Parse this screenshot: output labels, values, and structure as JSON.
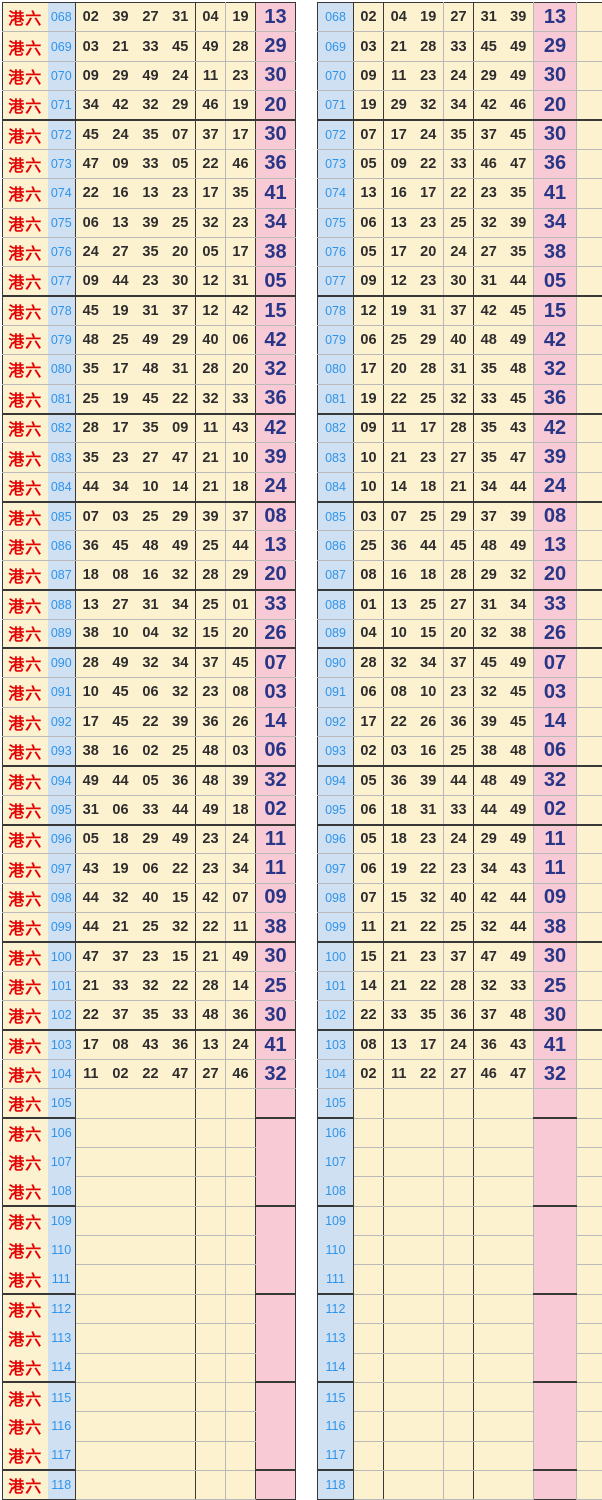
{
  "series_label": "港六",
  "colors": {
    "cell_bg": "#fdf2d0",
    "issue_col_bg": "#cfe0f3",
    "special_col_bg": "#f7cad5",
    "series_label_color": "#e30505",
    "issue_text_color": "#2e94ea",
    "number_text_color": "#2e2c2c",
    "special_text_color": "#293586",
    "grid_light": "#b9b9b9",
    "grid_dark": "#383838"
  },
  "group_dark_line_after": [
    "071",
    "077",
    "081",
    "084",
    "087",
    "089",
    "093",
    "095",
    "099",
    "102",
    "105",
    "108",
    "111",
    "114",
    "117"
  ],
  "left_table": {
    "rows": [
      {
        "issue": "068",
        "numbers": [
          "02",
          "39",
          "27",
          "31",
          "04",
          "19"
        ],
        "special": "13"
      },
      {
        "issue": "069",
        "numbers": [
          "03",
          "21",
          "33",
          "45",
          "49",
          "28"
        ],
        "special": "29"
      },
      {
        "issue": "070",
        "numbers": [
          "09",
          "29",
          "49",
          "24",
          "11",
          "23"
        ],
        "special": "30"
      },
      {
        "issue": "071",
        "numbers": [
          "34",
          "42",
          "32",
          "29",
          "46",
          "19"
        ],
        "special": "20"
      },
      {
        "issue": "072",
        "numbers": [
          "45",
          "24",
          "35",
          "07",
          "37",
          "17"
        ],
        "special": "30"
      },
      {
        "issue": "073",
        "numbers": [
          "47",
          "09",
          "33",
          "05",
          "22",
          "46"
        ],
        "special": "36"
      },
      {
        "issue": "074",
        "numbers": [
          "22",
          "16",
          "13",
          "23",
          "17",
          "35"
        ],
        "special": "41"
      },
      {
        "issue": "075",
        "numbers": [
          "06",
          "13",
          "39",
          "25",
          "32",
          "23"
        ],
        "special": "34"
      },
      {
        "issue": "076",
        "numbers": [
          "24",
          "27",
          "35",
          "20",
          "05",
          "17"
        ],
        "special": "38"
      },
      {
        "issue": "077",
        "numbers": [
          "09",
          "44",
          "23",
          "30",
          "12",
          "31"
        ],
        "special": "05"
      },
      {
        "issue": "078",
        "numbers": [
          "45",
          "19",
          "31",
          "37",
          "12",
          "42"
        ],
        "special": "15"
      },
      {
        "issue": "079",
        "numbers": [
          "48",
          "25",
          "49",
          "29",
          "40",
          "06"
        ],
        "special": "42"
      },
      {
        "issue": "080",
        "numbers": [
          "35",
          "17",
          "48",
          "31",
          "28",
          "20"
        ],
        "special": "32"
      },
      {
        "issue": "081",
        "numbers": [
          "25",
          "19",
          "45",
          "22",
          "32",
          "33"
        ],
        "special": "36"
      },
      {
        "issue": "082",
        "numbers": [
          "28",
          "17",
          "35",
          "09",
          "11",
          "43"
        ],
        "special": "42"
      },
      {
        "issue": "083",
        "numbers": [
          "35",
          "23",
          "27",
          "47",
          "21",
          "10"
        ],
        "special": "39"
      },
      {
        "issue": "084",
        "numbers": [
          "44",
          "34",
          "10",
          "14",
          "21",
          "18"
        ],
        "special": "24"
      },
      {
        "issue": "085",
        "numbers": [
          "07",
          "03",
          "25",
          "29",
          "39",
          "37"
        ],
        "special": "08"
      },
      {
        "issue": "086",
        "numbers": [
          "36",
          "45",
          "48",
          "49",
          "25",
          "44"
        ],
        "special": "13"
      },
      {
        "issue": "087",
        "numbers": [
          "18",
          "08",
          "16",
          "32",
          "28",
          "29"
        ],
        "special": "20"
      },
      {
        "issue": "088",
        "numbers": [
          "13",
          "27",
          "31",
          "34",
          "25",
          "01"
        ],
        "special": "33"
      },
      {
        "issue": "089",
        "numbers": [
          "38",
          "10",
          "04",
          "32",
          "15",
          "20"
        ],
        "special": "26"
      },
      {
        "issue": "090",
        "numbers": [
          "28",
          "49",
          "32",
          "34",
          "37",
          "45"
        ],
        "special": "07"
      },
      {
        "issue": "091",
        "numbers": [
          "10",
          "45",
          "06",
          "32",
          "23",
          "08"
        ],
        "special": "03"
      },
      {
        "issue": "092",
        "numbers": [
          "17",
          "45",
          "22",
          "39",
          "36",
          "26"
        ],
        "special": "14"
      },
      {
        "issue": "093",
        "numbers": [
          "38",
          "16",
          "02",
          "25",
          "48",
          "03"
        ],
        "special": "06"
      },
      {
        "issue": "094",
        "numbers": [
          "49",
          "44",
          "05",
          "36",
          "48",
          "39"
        ],
        "special": "32"
      },
      {
        "issue": "095",
        "numbers": [
          "31",
          "06",
          "33",
          "44",
          "49",
          "18"
        ],
        "special": "02"
      },
      {
        "issue": "096",
        "numbers": [
          "05",
          "18",
          "29",
          "49",
          "23",
          "24"
        ],
        "special": "11"
      },
      {
        "issue": "097",
        "numbers": [
          "43",
          "19",
          "06",
          "22",
          "23",
          "34"
        ],
        "special": "11"
      },
      {
        "issue": "098",
        "numbers": [
          "44",
          "32",
          "40",
          "15",
          "42",
          "07"
        ],
        "special": "09"
      },
      {
        "issue": "099",
        "numbers": [
          "44",
          "21",
          "25",
          "32",
          "22",
          "11"
        ],
        "special": "38"
      },
      {
        "issue": "100",
        "numbers": [
          "47",
          "37",
          "23",
          "15",
          "21",
          "49"
        ],
        "special": "30"
      },
      {
        "issue": "101",
        "numbers": [
          "21",
          "33",
          "32",
          "22",
          "28",
          "14"
        ],
        "special": "25"
      },
      {
        "issue": "102",
        "numbers": [
          "22",
          "37",
          "35",
          "33",
          "48",
          "36"
        ],
        "special": "30"
      },
      {
        "issue": "103",
        "numbers": [
          "17",
          "08",
          "43",
          "36",
          "13",
          "24"
        ],
        "special": "41"
      },
      {
        "issue": "104",
        "numbers": [
          "11",
          "02",
          "22",
          "47",
          "27",
          "46"
        ],
        "special": "32"
      },
      {
        "issue": "105",
        "numbers": [],
        "special": ""
      },
      {
        "issue": "106",
        "numbers": [],
        "special": ""
      },
      {
        "issue": "107",
        "numbers": [],
        "special": ""
      },
      {
        "issue": "108",
        "numbers": [],
        "special": ""
      },
      {
        "issue": "109",
        "numbers": [],
        "special": ""
      },
      {
        "issue": "110",
        "numbers": [],
        "special": ""
      },
      {
        "issue": "111",
        "numbers": [],
        "special": ""
      },
      {
        "issue": "112",
        "numbers": [],
        "special": ""
      },
      {
        "issue": "113",
        "numbers": [],
        "special": ""
      },
      {
        "issue": "114",
        "numbers": [],
        "special": ""
      },
      {
        "issue": "115",
        "numbers": [],
        "special": ""
      },
      {
        "issue": "116",
        "numbers": [],
        "special": ""
      },
      {
        "issue": "117",
        "numbers": [],
        "special": ""
      },
      {
        "issue": "118",
        "numbers": [],
        "special": ""
      }
    ]
  },
  "right_table": {
    "rows": [
      {
        "issue": "068",
        "numbers": [
          "02",
          "04",
          "19",
          "27",
          "31",
          "39"
        ],
        "special": "13"
      },
      {
        "issue": "069",
        "numbers": [
          "03",
          "21",
          "28",
          "33",
          "45",
          "49"
        ],
        "special": "29"
      },
      {
        "issue": "070",
        "numbers": [
          "09",
          "11",
          "23",
          "24",
          "29",
          "49"
        ],
        "special": "30"
      },
      {
        "issue": "071",
        "numbers": [
          "19",
          "29",
          "32",
          "34",
          "42",
          "46"
        ],
        "special": "20"
      },
      {
        "issue": "072",
        "numbers": [
          "07",
          "17",
          "24",
          "35",
          "37",
          "45"
        ],
        "special": "30"
      },
      {
        "issue": "073",
        "numbers": [
          "05",
          "09",
          "22",
          "33",
          "46",
          "47"
        ],
        "special": "36"
      },
      {
        "issue": "074",
        "numbers": [
          "13",
          "16",
          "17",
          "22",
          "23",
          "35"
        ],
        "special": "41"
      },
      {
        "issue": "075",
        "numbers": [
          "06",
          "13",
          "23",
          "25",
          "32",
          "39"
        ],
        "special": "34"
      },
      {
        "issue": "076",
        "numbers": [
          "05",
          "17",
          "20",
          "24",
          "27",
          "35"
        ],
        "special": "38"
      },
      {
        "issue": "077",
        "numbers": [
          "09",
          "12",
          "23",
          "30",
          "31",
          "44"
        ],
        "special": "05"
      },
      {
        "issue": "078",
        "numbers": [
          "12",
          "19",
          "31",
          "37",
          "42",
          "45"
        ],
        "special": "15"
      },
      {
        "issue": "079",
        "numbers": [
          "06",
          "25",
          "29",
          "40",
          "48",
          "49"
        ],
        "special": "42"
      },
      {
        "issue": "080",
        "numbers": [
          "17",
          "20",
          "28",
          "31",
          "35",
          "48"
        ],
        "special": "32"
      },
      {
        "issue": "081",
        "numbers": [
          "19",
          "22",
          "25",
          "32",
          "33",
          "45"
        ],
        "special": "36"
      },
      {
        "issue": "082",
        "numbers": [
          "09",
          "11",
          "17",
          "28",
          "35",
          "43"
        ],
        "special": "42"
      },
      {
        "issue": "083",
        "numbers": [
          "10",
          "21",
          "23",
          "27",
          "35",
          "47"
        ],
        "special": "39"
      },
      {
        "issue": "084",
        "numbers": [
          "10",
          "14",
          "18",
          "21",
          "34",
          "44"
        ],
        "special": "24"
      },
      {
        "issue": "085",
        "numbers": [
          "03",
          "07",
          "25",
          "29",
          "37",
          "39"
        ],
        "special": "08"
      },
      {
        "issue": "086",
        "numbers": [
          "25",
          "36",
          "44",
          "45",
          "48",
          "49"
        ],
        "special": "13"
      },
      {
        "issue": "087",
        "numbers": [
          "08",
          "16",
          "18",
          "28",
          "29",
          "32"
        ],
        "special": "20"
      },
      {
        "issue": "088",
        "numbers": [
          "01",
          "13",
          "25",
          "27",
          "31",
          "34"
        ],
        "special": "33"
      },
      {
        "issue": "089",
        "numbers": [
          "04",
          "10",
          "15",
          "20",
          "32",
          "38"
        ],
        "special": "26"
      },
      {
        "issue": "090",
        "numbers": [
          "28",
          "32",
          "34",
          "37",
          "45",
          "49"
        ],
        "special": "07"
      },
      {
        "issue": "091",
        "numbers": [
          "06",
          "08",
          "10",
          "23",
          "32",
          "45"
        ],
        "special": "03"
      },
      {
        "issue": "092",
        "numbers": [
          "17",
          "22",
          "26",
          "36",
          "39",
          "45"
        ],
        "special": "14"
      },
      {
        "issue": "093",
        "numbers": [
          "02",
          "03",
          "16",
          "25",
          "38",
          "48"
        ],
        "special": "06"
      },
      {
        "issue": "094",
        "numbers": [
          "05",
          "36",
          "39",
          "44",
          "48",
          "49"
        ],
        "special": "32"
      },
      {
        "issue": "095",
        "numbers": [
          "06",
          "18",
          "31",
          "33",
          "44",
          "49"
        ],
        "special": "02"
      },
      {
        "issue": "096",
        "numbers": [
          "05",
          "18",
          "23",
          "24",
          "29",
          "49"
        ],
        "special": "11"
      },
      {
        "issue": "097",
        "numbers": [
          "06",
          "19",
          "22",
          "23",
          "34",
          "43"
        ],
        "special": "11"
      },
      {
        "issue": "098",
        "numbers": [
          "07",
          "15",
          "32",
          "40",
          "42",
          "44"
        ],
        "special": "09"
      },
      {
        "issue": "099",
        "numbers": [
          "11",
          "21",
          "22",
          "25",
          "32",
          "44"
        ],
        "special": "38"
      },
      {
        "issue": "100",
        "numbers": [
          "15",
          "21",
          "23",
          "37",
          "47",
          "49"
        ],
        "special": "30"
      },
      {
        "issue": "101",
        "numbers": [
          "14",
          "21",
          "22",
          "28",
          "32",
          "33"
        ],
        "special": "25"
      },
      {
        "issue": "102",
        "numbers": [
          "22",
          "33",
          "35",
          "36",
          "37",
          "48"
        ],
        "special": "30"
      },
      {
        "issue": "103",
        "numbers": [
          "08",
          "13",
          "17",
          "24",
          "36",
          "43"
        ],
        "special": "41"
      },
      {
        "issue": "104",
        "numbers": [
          "02",
          "11",
          "22",
          "27",
          "46",
          "47"
        ],
        "special": "32"
      },
      {
        "issue": "105",
        "numbers": [],
        "special": ""
      },
      {
        "issue": "106",
        "numbers": [],
        "special": ""
      },
      {
        "issue": "107",
        "numbers": [],
        "special": ""
      },
      {
        "issue": "108",
        "numbers": [],
        "special": ""
      },
      {
        "issue": "109",
        "numbers": [],
        "special": ""
      },
      {
        "issue": "110",
        "numbers": [],
        "special": ""
      },
      {
        "issue": "111",
        "numbers": [],
        "special": ""
      },
      {
        "issue": "112",
        "numbers": [],
        "special": ""
      },
      {
        "issue": "113",
        "numbers": [],
        "special": ""
      },
      {
        "issue": "114",
        "numbers": [],
        "special": ""
      },
      {
        "issue": "115",
        "numbers": [],
        "special": ""
      },
      {
        "issue": "116",
        "numbers": [],
        "special": ""
      },
      {
        "issue": "117",
        "numbers": [],
        "special": ""
      },
      {
        "issue": "118",
        "numbers": [],
        "special": ""
      }
    ]
  }
}
